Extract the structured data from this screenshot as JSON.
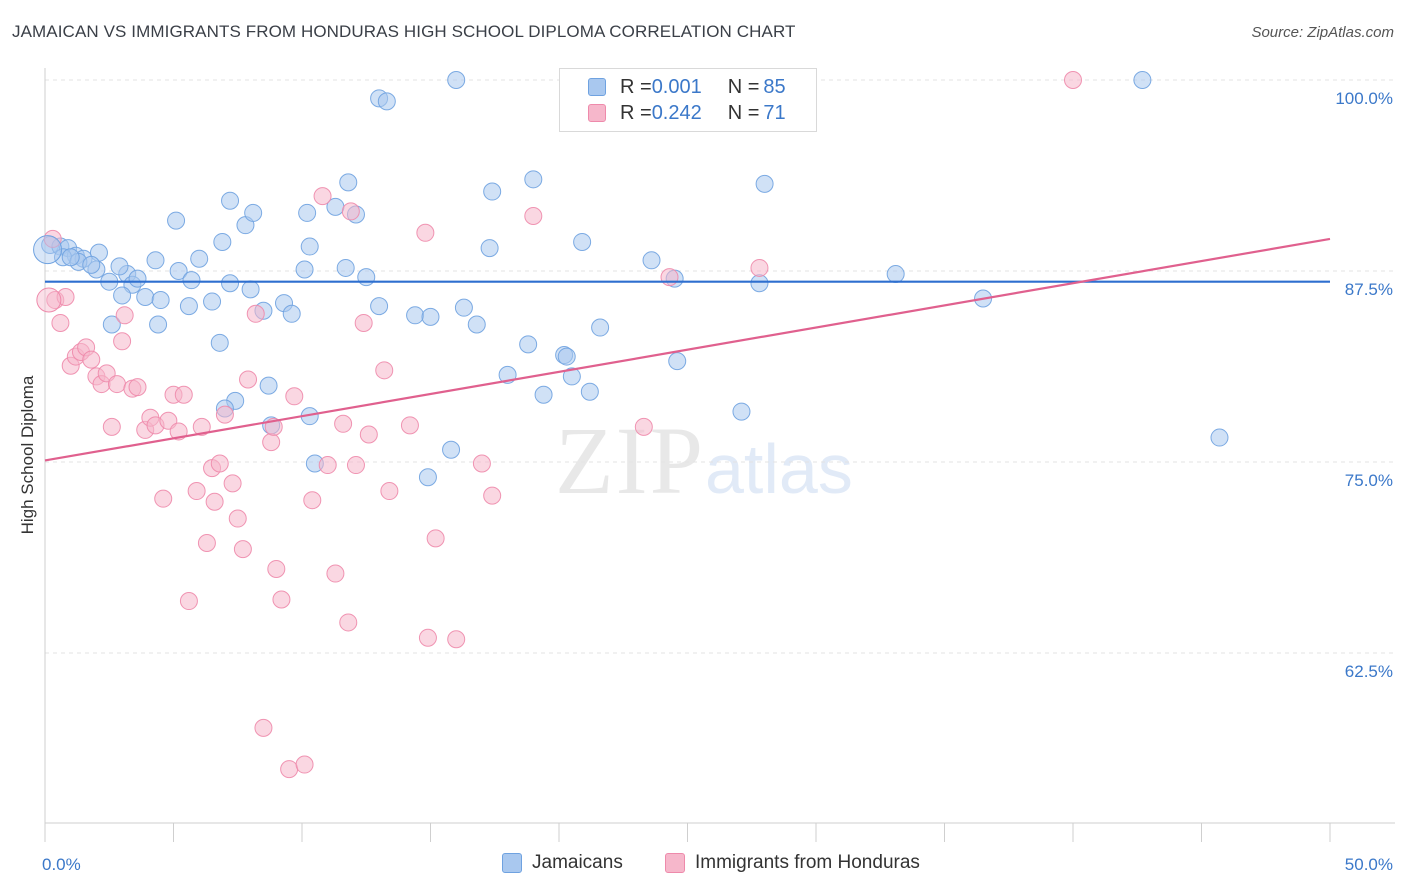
{
  "title": "JAMAICAN VS IMMIGRANTS FROM HONDURAS HIGH SCHOOL DIPLOMA CORRELATION CHART",
  "source": "Source: ZipAtlas.com",
  "watermark": {
    "zip": "ZIP",
    "atlas": "atlas"
  },
  "legend": {
    "rows": [
      {
        "r_label": "R = ",
        "r_value": "0.001",
        "n_label": "N = ",
        "n_value": "85",
        "color": "#a9c8ef"
      },
      {
        "r_label": "R = ",
        "r_value": "0.242",
        "n_label": "N = ",
        "n_value": "71",
        "color": "#f6b7cb"
      }
    ]
  },
  "bottom_legend": [
    {
      "label": "Jamaicans",
      "color": "#a9c8ef"
    },
    {
      "label": "Immigrants from Honduras",
      "color": "#f6b7cb"
    }
  ],
  "chart_data": {
    "type": "scatter",
    "ylabel": "High School Diploma",
    "xlim": [
      0,
      50
    ],
    "ylim": [
      52,
      101
    ],
    "x_tick_labels": [
      "0.0%",
      "50.0%"
    ],
    "y_ticks": [
      {
        "value": 100,
        "label": "100.0%"
      },
      {
        "value": 87.5,
        "label": "87.5%"
      },
      {
        "value": 75,
        "label": "75.0%"
      },
      {
        "value": 62.5,
        "label": "62.5%"
      }
    ],
    "grid": true,
    "series": [
      {
        "name": "Jamaicans",
        "color": "#6fa2e0",
        "fill": "#a9c8ef",
        "trend": {
          "x": [
            0,
            50
          ],
          "y": [
            86.8,
            86.8
          ],
          "color": "#2e6fcf"
        },
        "points": [
          [
            0.2,
            89.2
          ],
          [
            0.6,
            89.1
          ],
          [
            0.9,
            89.0
          ],
          [
            1.2,
            88.5
          ],
          [
            1.5,
            88.3
          ],
          [
            0.7,
            88.4
          ],
          [
            1.3,
            88.1
          ],
          [
            2.1,
            88.7
          ],
          [
            2.0,
            87.6
          ],
          [
            3.2,
            87.3
          ],
          [
            4.3,
            88.2
          ],
          [
            5.2,
            87.5
          ],
          [
            3.4,
            86.6
          ],
          [
            3.9,
            85.8
          ],
          [
            2.5,
            86.8
          ],
          [
            3.0,
            85.9
          ],
          [
            4.5,
            85.6
          ],
          [
            5.6,
            85.2
          ],
          [
            6.5,
            85.5
          ],
          [
            7.2,
            86.7
          ],
          [
            8.0,
            86.3
          ],
          [
            8.5,
            84.9
          ],
          [
            9.3,
            85.4
          ],
          [
            10.1,
            87.6
          ],
          [
            11.7,
            87.7
          ],
          [
            12.5,
            87.1
          ],
          [
            13.0,
            85.2
          ],
          [
            14.4,
            84.6
          ],
          [
            15.0,
            84.5
          ],
          [
            16.3,
            85.1
          ],
          [
            16.8,
            84.0
          ],
          [
            2.6,
            84.0
          ],
          [
            4.4,
            84.0
          ],
          [
            6.8,
            82.8
          ],
          [
            8.7,
            80.0
          ],
          [
            7.4,
            79.0
          ],
          [
            7.0,
            78.5
          ],
          [
            8.8,
            77.4
          ],
          [
            10.3,
            78.0
          ],
          [
            10.5,
            74.9
          ],
          [
            14.9,
            74.0
          ],
          [
            15.8,
            75.8
          ],
          [
            5.1,
            90.8
          ],
          [
            6.9,
            89.4
          ],
          [
            7.8,
            90.5
          ],
          [
            8.1,
            91.3
          ],
          [
            10.2,
            91.3
          ],
          [
            11.3,
            91.7
          ],
          [
            12.1,
            91.2
          ],
          [
            11.8,
            93.3
          ],
          [
            10.3,
            89.1
          ],
          [
            13.0,
            98.8
          ],
          [
            13.3,
            98.6
          ],
          [
            16.0,
            100.0
          ],
          [
            17.4,
            92.7
          ],
          [
            17.3,
            89.0
          ],
          [
            18.8,
            82.7
          ],
          [
            18.0,
            80.7
          ],
          [
            19.4,
            79.4
          ],
          [
            20.2,
            82.0
          ],
          [
            20.3,
            81.9
          ],
          [
            20.5,
            80.6
          ],
          [
            21.2,
            79.6
          ],
          [
            21.6,
            83.8
          ],
          [
            23.6,
            88.2
          ],
          [
            24.5,
            87.0
          ],
          [
            24.6,
            81.6
          ],
          [
            26.3,
            100.0
          ],
          [
            27.8,
            86.7
          ],
          [
            27.1,
            78.3
          ],
          [
            28.0,
            93.2
          ],
          [
            33.1,
            87.3
          ],
          [
            36.5,
            85.7
          ],
          [
            42.7,
            100.0
          ],
          [
            45.7,
            76.6
          ],
          [
            19.0,
            93.5
          ],
          [
            20.9,
            89.4
          ],
          [
            9.6,
            84.7
          ],
          [
            6.0,
            88.3
          ],
          [
            3.6,
            87.0
          ],
          [
            5.7,
            86.9
          ],
          [
            2.9,
            87.8
          ],
          [
            1.0,
            88.4
          ],
          [
            7.2,
            92.1
          ],
          [
            1.8,
            87.9
          ]
        ]
      },
      {
        "name": "Immigrants from Honduras",
        "color": "#ee8aab",
        "fill": "#f6b7cb",
        "trend": {
          "x": [
            0,
            50
          ],
          "y": [
            75.1,
            89.6
          ],
          "color": "#e0608e"
        },
        "points": [
          [
            0.3,
            89.6
          ],
          [
            0.4,
            85.6
          ],
          [
            0.6,
            84.1
          ],
          [
            0.8,
            85.8
          ],
          [
            1.0,
            81.3
          ],
          [
            1.2,
            81.9
          ],
          [
            1.4,
            82.2
          ],
          [
            1.6,
            82.5
          ],
          [
            1.8,
            81.7
          ],
          [
            2.0,
            80.6
          ],
          [
            2.2,
            80.1
          ],
          [
            2.4,
            80.8
          ],
          [
            2.6,
            77.3
          ],
          [
            2.8,
            80.1
          ],
          [
            3.0,
            82.9
          ],
          [
            3.1,
            84.6
          ],
          [
            3.4,
            79.8
          ],
          [
            3.6,
            79.9
          ],
          [
            3.9,
            77.1
          ],
          [
            4.1,
            77.9
          ],
          [
            4.3,
            77.4
          ],
          [
            4.6,
            72.6
          ],
          [
            4.8,
            77.7
          ],
          [
            5.0,
            79.4
          ],
          [
            5.2,
            77.0
          ],
          [
            5.4,
            79.4
          ],
          [
            5.6,
            65.9
          ],
          [
            5.9,
            73.1
          ],
          [
            6.1,
            77.3
          ],
          [
            6.3,
            69.7
          ],
          [
            6.5,
            74.6
          ],
          [
            6.6,
            72.4
          ],
          [
            6.8,
            74.9
          ],
          [
            7.0,
            78.1
          ],
          [
            7.3,
            73.6
          ],
          [
            7.5,
            71.3
          ],
          [
            7.7,
            69.3
          ],
          [
            7.9,
            80.4
          ],
          [
            8.2,
            84.7
          ],
          [
            8.5,
            57.6
          ],
          [
            8.8,
            76.3
          ],
          [
            8.9,
            77.3
          ],
          [
            9.0,
            68.0
          ],
          [
            9.2,
            66.0
          ],
          [
            9.5,
            54.9
          ],
          [
            9.7,
            79.3
          ],
          [
            10.1,
            55.2
          ],
          [
            10.4,
            72.5
          ],
          [
            10.8,
            92.4
          ],
          [
            11.0,
            74.8
          ],
          [
            11.3,
            67.7
          ],
          [
            11.6,
            77.5
          ],
          [
            11.8,
            64.5
          ],
          [
            12.1,
            74.8
          ],
          [
            12.4,
            84.1
          ],
          [
            12.6,
            76.8
          ],
          [
            13.2,
            81.0
          ],
          [
            13.4,
            73.1
          ],
          [
            14.2,
            77.4
          ],
          [
            14.8,
            90.0
          ],
          [
            14.9,
            63.5
          ],
          [
            15.2,
            70.0
          ],
          [
            16.0,
            63.4
          ],
          [
            17.0,
            74.9
          ],
          [
            17.4,
            72.8
          ],
          [
            19.0,
            91.1
          ],
          [
            23.3,
            77.3
          ],
          [
            24.3,
            87.1
          ],
          [
            27.8,
            87.7
          ],
          [
            40.0,
            100.0
          ],
          [
            11.9,
            91.4
          ]
        ]
      }
    ]
  }
}
